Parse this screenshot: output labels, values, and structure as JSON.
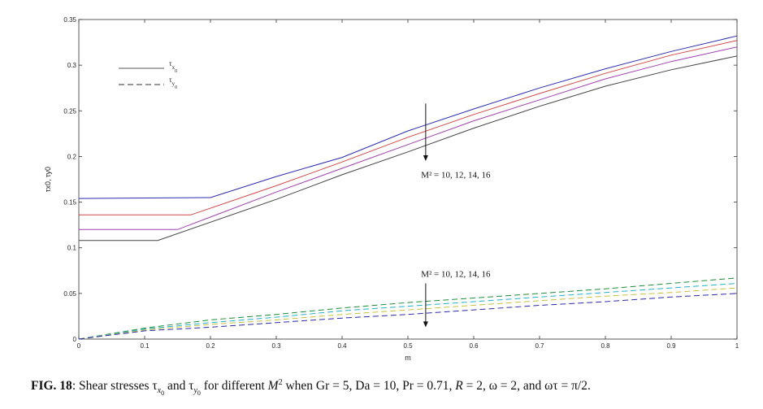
{
  "chart_data": {
    "type": "line",
    "xlabel": "m",
    "ylabel": "τx0, τy0",
    "xlim": [
      0,
      1
    ],
    "ylim": [
      0,
      0.35
    ],
    "xticks": [
      "0",
      "0.1",
      "0.2",
      "0.3",
      "0.4",
      "0.5",
      "0.6",
      "0.7",
      "0.8",
      "0.9",
      "1"
    ],
    "yticks": [
      "0",
      "0.05",
      "0.1",
      "0.15",
      "0.2",
      "0.25",
      "0.3",
      "0.35"
    ],
    "grid": false,
    "legend": {
      "position": "top-left",
      "entries": [
        {
          "main": "τ",
          "sub": "x",
          "subsub": "0",
          "style": "solid"
        },
        {
          "main": "τ",
          "sub": "y",
          "subsub": "0",
          "style": "dashed"
        }
      ]
    },
    "annotations": [
      {
        "text": "M² = 10, 12, 14, 16",
        "x": 0.52,
        "y": 0.177
      },
      {
        "text": "M² = 10, 12, 14, 16",
        "x": 0.52,
        "y": 0.068
      }
    ],
    "arrows": [
      {
        "x": 0.527,
        "from": 0.258,
        "to": 0.195
      },
      {
        "x": 0.527,
        "from": 0.061,
        "to": 0.013
      }
    ],
    "series": [
      {
        "style": "solid",
        "color": "#2b2bb0",
        "x": [
          0,
          0.2,
          0.3,
          0.4,
          0.5,
          0.6,
          0.7,
          0.8,
          0.9,
          1.0
        ],
        "y": [
          0.154,
          0.155,
          0.178,
          0.199,
          0.228,
          0.252,
          0.275,
          0.296,
          0.315,
          0.332
        ]
      },
      {
        "style": "solid",
        "color": "#d04848",
        "x": [
          0,
          0.17,
          0.3,
          0.4,
          0.5,
          0.6,
          0.7,
          0.8,
          0.9,
          1.0
        ],
        "y": [
          0.136,
          0.136,
          0.168,
          0.194,
          0.221,
          0.246,
          0.269,
          0.291,
          0.311,
          0.327
        ]
      },
      {
        "style": "solid",
        "color": "#a040b0",
        "x": [
          0,
          0.15,
          0.3,
          0.4,
          0.5,
          0.6,
          0.7,
          0.8,
          0.9,
          1.0
        ],
        "y": [
          0.12,
          0.12,
          0.161,
          0.187,
          0.213,
          0.239,
          0.262,
          0.285,
          0.304,
          0.32
        ]
      },
      {
        "style": "solid",
        "color": "#444444",
        "x": [
          0,
          0.12,
          0.3,
          0.4,
          0.5,
          0.6,
          0.7,
          0.8,
          0.9,
          1.0
        ],
        "y": [
          0.108,
          0.108,
          0.153,
          0.18,
          0.205,
          0.231,
          0.255,
          0.277,
          0.295,
          0.31
        ]
      },
      {
        "style": "dashed",
        "color": "#1e8c3a",
        "x": [
          0,
          0.1,
          0.2,
          0.3,
          0.4,
          0.5,
          0.6,
          0.7,
          0.8,
          0.9,
          1.0
        ],
        "y": [
          0,
          0.012,
          0.021,
          0.027,
          0.034,
          0.04,
          0.045,
          0.05,
          0.055,
          0.061,
          0.067
        ]
      },
      {
        "style": "dashed",
        "color": "#22b0c8",
        "x": [
          0,
          0.1,
          0.2,
          0.3,
          0.4,
          0.5,
          0.6,
          0.7,
          0.8,
          0.9,
          1.0
        ],
        "y": [
          0,
          0.011,
          0.018,
          0.024,
          0.031,
          0.036,
          0.041,
          0.046,
          0.051,
          0.056,
          0.061
        ]
      },
      {
        "style": "dashed",
        "color": "#c8c040",
        "x": [
          0,
          0.1,
          0.2,
          0.3,
          0.4,
          0.5,
          0.6,
          0.7,
          0.8,
          0.9,
          1.0
        ],
        "y": [
          0,
          0.01,
          0.016,
          0.021,
          0.027,
          0.032,
          0.037,
          0.042,
          0.047,
          0.051,
          0.056
        ]
      },
      {
        "style": "dashed",
        "color": "#2a2aa8",
        "x": [
          0,
          0.1,
          0.2,
          0.3,
          0.4,
          0.5,
          0.6,
          0.7,
          0.8,
          0.9,
          1.0
        ],
        "y": [
          0,
          0.009,
          0.013,
          0.018,
          0.023,
          0.027,
          0.032,
          0.037,
          0.041,
          0.046,
          0.05
        ]
      }
    ]
  },
  "caption": {
    "label": "FIG. 18",
    "text": ": Shear stresses τ",
    "mid1": " and τ",
    "mid2": " for different ",
    "m2": "M",
    "rest": " when Gr = 5, Da = 10, Pr = 0.71, ",
    "r": "R",
    "tail": " = 2, ω = 2, and ωτ = π/2."
  }
}
